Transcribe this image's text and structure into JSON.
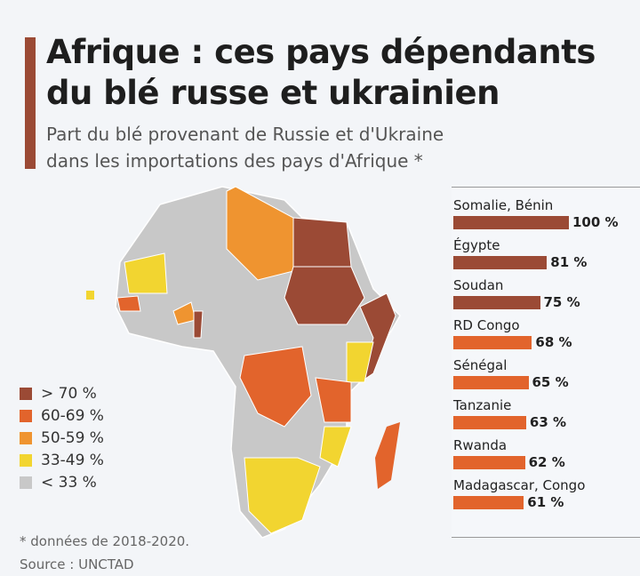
{
  "title": [
    "Afrique : ces pays dépendants",
    "du blé russe et ukrainien"
  ],
  "subtitle": [
    "Part du blé provenant de Russie et d'Ukraine",
    "dans les importations des pays d'Afrique *"
  ],
  "colors": {
    "gt70": "#9b4a35",
    "c60_69": "#e2642c",
    "c50_59": "#ef9430",
    "c33_49": "#f2d530",
    "lt33": "#c8c8c8",
    "accent": "#9b4a35"
  },
  "legend": [
    {
      "label": "> 70 %",
      "color": "#9b4a35"
    },
    {
      "label": "60-69 %",
      "color": "#e2642c"
    },
    {
      "label": "50-59 %",
      "color": "#ef9430"
    },
    {
      "label": "33-49 %",
      "color": "#f2d530"
    },
    {
      "label": "< 33 %",
      "color": "#c8c8c8"
    }
  ],
  "footnote": "* données de 2018-2020.",
  "source": "Source : UNCTAD",
  "chart_data": {
    "type": "bar",
    "orientation": "horizontal",
    "title": "Part du blé provenant de Russie et d'Ukraine dans les importations des pays d'Afrique",
    "unit": "%",
    "categories": [
      "Somalie, Bénin",
      "Égypte",
      "Soudan",
      "RD Congo",
      "Sénégal",
      "Tanzanie",
      "Rwanda",
      "Madagascar, Congo"
    ],
    "values": [
      100,
      81,
      75,
      68,
      65,
      63,
      62,
      61
    ],
    "labels": [
      "100 %",
      "81 %",
      "75 %",
      "68 %",
      "65 %",
      "63 %",
      "62 %",
      "61 %"
    ],
    "xlim": [
      0,
      100
    ]
  }
}
